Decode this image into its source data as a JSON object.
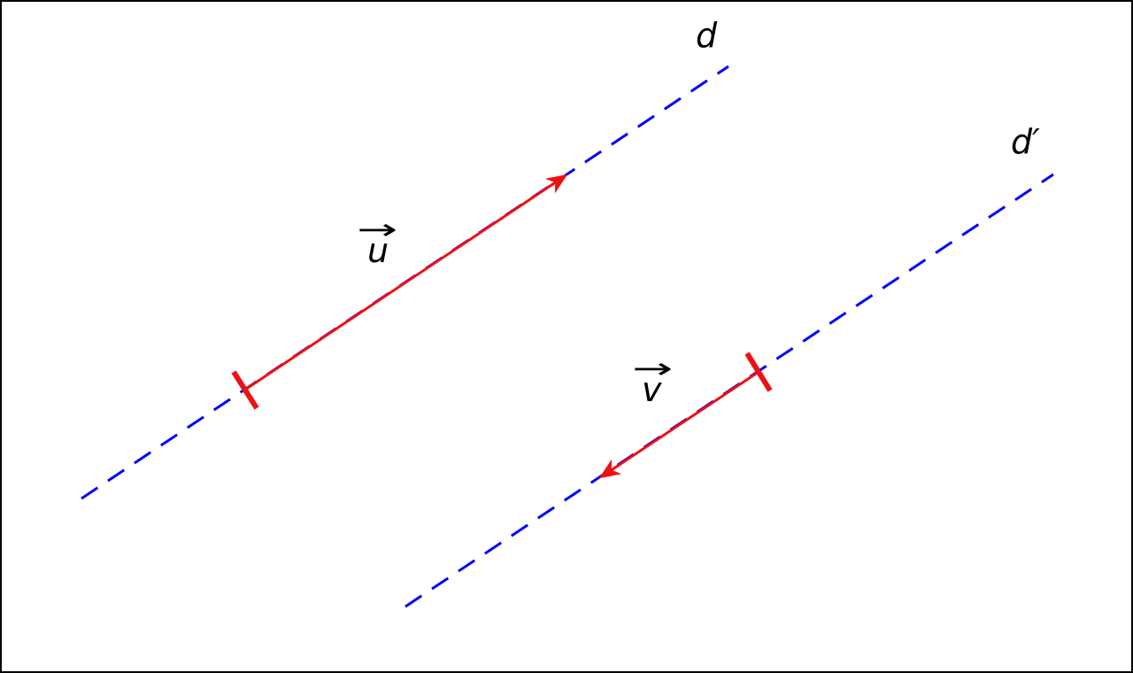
{
  "figure": {
    "colors": {
      "line": "#0000ff",
      "vector": "#ee1111",
      "label": "#000000",
      "frame": "#000000"
    },
    "lines": [
      {
        "id": "d",
        "label": "d",
        "style": "dashed"
      },
      {
        "id": "d-prime",
        "label": "d′",
        "style": "dashed"
      }
    ],
    "vectors": [
      {
        "id": "u",
        "label": "u",
        "over_arrow": "→",
        "on_line": "d",
        "direction": "up-right"
      },
      {
        "id": "v",
        "label": "v",
        "over_arrow": "→",
        "on_line": "d′",
        "direction": "down-left"
      }
    ]
  }
}
